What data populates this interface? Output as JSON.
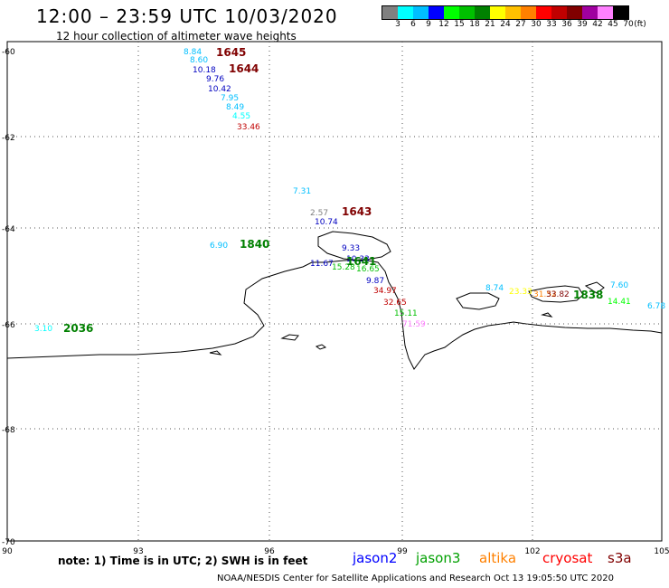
{
  "title": "12:00 – 23:59 UTC 10/03/2020",
  "subtitle": "12 hour collection of altimeter wave heights",
  "colorbar": {
    "colors": [
      "#808080",
      "#00ffff",
      "#00bfff",
      "#0000ff",
      "#00ff00",
      "#00c000",
      "#008000",
      "#ffff00",
      "#ffc000",
      "#ff8000",
      "#ff0000",
      "#c00000",
      "#800000",
      "#a000a0",
      "#ff80ff",
      "#000000"
    ],
    "labels": [
      "3",
      "6",
      "9",
      "12",
      "15",
      "18",
      "21",
      "24",
      "27",
      "30",
      "33",
      "36",
      "39",
      "42",
      "45",
      "70",
      "(ft)"
    ]
  },
  "lat_labels": [
    "-60",
    "-62",
    "-64",
    "-66",
    "-68",
    "-70"
  ],
  "lon_labels": [
    "90",
    "93",
    "96",
    "99",
    "102",
    "105"
  ],
  "observations": [
    {
      "text": "8.84",
      "color": "#00bfff"
    },
    {
      "text": "8.60",
      "color": "#00bfff"
    },
    {
      "text": "10.18",
      "color": "#0000c0"
    },
    {
      "text": "9.76",
      "color": "#0000c0"
    },
    {
      "text": "10.42",
      "color": "#0000c0"
    },
    {
      "text": "7.95",
      "color": "#00bfff"
    },
    {
      "text": "8.49",
      "color": "#00bfff"
    },
    {
      "text": "4.55",
      "color": "#00ffff"
    },
    {
      "text": "33.46",
      "color": "#c00000"
    },
    {
      "text": "7.31",
      "color": "#00bfff"
    },
    {
      "text": "2.57",
      "color": "#808080"
    },
    {
      "text": "10.74",
      "color": "#0000c0"
    },
    {
      "text": "6.90",
      "color": "#00bfff"
    },
    {
      "text": "9.33",
      "color": "#0000c0"
    },
    {
      "text": "10.33",
      "color": "#0000c0"
    },
    {
      "text": "11.67",
      "color": "#0000c0"
    },
    {
      "text": "15.28",
      "color": "#00c000"
    },
    {
      "text": "16.65",
      "color": "#00c000"
    },
    {
      "text": "9.87",
      "color": "#0000c0"
    },
    {
      "text": "34.97",
      "color": "#c00000"
    },
    {
      "text": "32.65",
      "color": "#c00000"
    },
    {
      "text": "15.11",
      "color": "#00c000"
    },
    {
      "text": "71.59",
      "color": "#ff80ff"
    },
    {
      "text": "3.10",
      "color": "#00ffff"
    },
    {
      "text": "8.74",
      "color": "#00bfff"
    },
    {
      "text": "23.33",
      "color": "#ffff00"
    },
    {
      "text": "31.52",
      "color": "#ff8000"
    },
    {
      "text": "33.82",
      "color": "#800000"
    },
    {
      "text": "7.60",
      "color": "#00bfff"
    },
    {
      "text": "14.41",
      "color": "#00ff00"
    },
    {
      "text": "6.78",
      "color": "#00bfff"
    }
  ],
  "times": [
    {
      "text": "1645",
      "color": "#800000"
    },
    {
      "text": "1644",
      "color": "#800000"
    },
    {
      "text": "1643",
      "color": "#800000"
    },
    {
      "text": "1840",
      "color": "#008000"
    },
    {
      "text": "1641",
      "color": "#008000"
    },
    {
      "text": "2036",
      "color": "#008000"
    },
    {
      "text": "1838",
      "color": "#008000"
    }
  ],
  "note": "note: 1) Time is in UTC; 2) SWH is in feet",
  "satellites": [
    {
      "name": "jason2",
      "color": "#0000ff"
    },
    {
      "name": "jason3",
      "color": "#00a000"
    },
    {
      "name": "altika",
      "color": "#ff8000"
    },
    {
      "name": "cryosat",
      "color": "#ff0000"
    },
    {
      "name": "s3a",
      "color": "#800000"
    }
  ],
  "footer": "NOAA/NESDIS Center for Satellite Applications and Research    Oct 13 19:05:50 UTC 2020"
}
